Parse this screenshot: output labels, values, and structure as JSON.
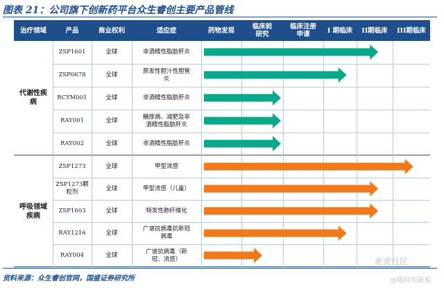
{
  "figure_title": "图表 21：公司旗下创新药平台众生睿创主要产品管线",
  "source": "资料来源：众生睿创官网，国盛证券研究所",
  "watermark_1": "老虎社区",
  "watermark_2": "@暗羚侃新股",
  "colors": {
    "header": "#1f4e8c",
    "metabolic": "#0aa88a",
    "respiratory": "#f07a1b"
  },
  "headers": [
    "治疗领域",
    "产品",
    "商业权利",
    "适应症",
    "药物发现",
    "临床前研究",
    "临床注册申请",
    "I 期临床",
    "II期临床",
    "III期临床"
  ],
  "groups": [
    {
      "label": "代谢性疾病",
      "rows": [
        0,
        4
      ]
    },
    {
      "label": "呼吸领域疾病",
      "rows": [
        5,
        9
      ]
    }
  ],
  "pipeline": [
    {
      "product": "ZSP1601",
      "rights": "全球",
      "indication": "非酒精性脂肪肝炎",
      "stage_reached": 8.6,
      "area": "metabolic"
    },
    {
      "product": "ZSP0678",
      "rights": "全球",
      "indication": "原发性胆汁性胆管炎",
      "stage_reached": 7.7,
      "area": "metabolic"
    },
    {
      "product": "RCYM001",
      "rights": "全球",
      "indication": "非酒精性脂肪肝炎",
      "stage_reached": 5.95,
      "area": "metabolic"
    },
    {
      "product": "RAY001",
      "rights": "全球",
      "indication": "糖尿病、减肥及非酒精性脂肪肝炎",
      "stage_reached": 5.95,
      "area": "metabolic"
    },
    {
      "product": "RAY002",
      "rights": "全球",
      "indication": "非酒精性脂肪肝炎",
      "stage_reached": 5.95,
      "area": "metabolic"
    },
    {
      "product": "ZSP1273",
      "rights": "全球",
      "indication": "甲型流感",
      "stage_reached": 9.55,
      "area": "respiratory"
    },
    {
      "product": "ZSP1273颗粒剂",
      "rights": "全球",
      "indication": "甲型流感（儿童）",
      "stage_reached": 8.6,
      "area": "respiratory"
    },
    {
      "product": "ZSP1603",
      "rights": "全球",
      "indication": "特发性肺纤维化",
      "stage_reached": 8.6,
      "area": "respiratory"
    },
    {
      "product": "RAY1216",
      "rights": "全球",
      "indication": "广谱抗病毒抗新冠病毒",
      "stage_reached": 7.7,
      "area": "respiratory"
    },
    {
      "product": "RAY004",
      "rights": "全球",
      "indication": "广谱抗病毒（新冠、流感）",
      "stage_reached": 5.5,
      "area": "respiratory"
    }
  ]
}
